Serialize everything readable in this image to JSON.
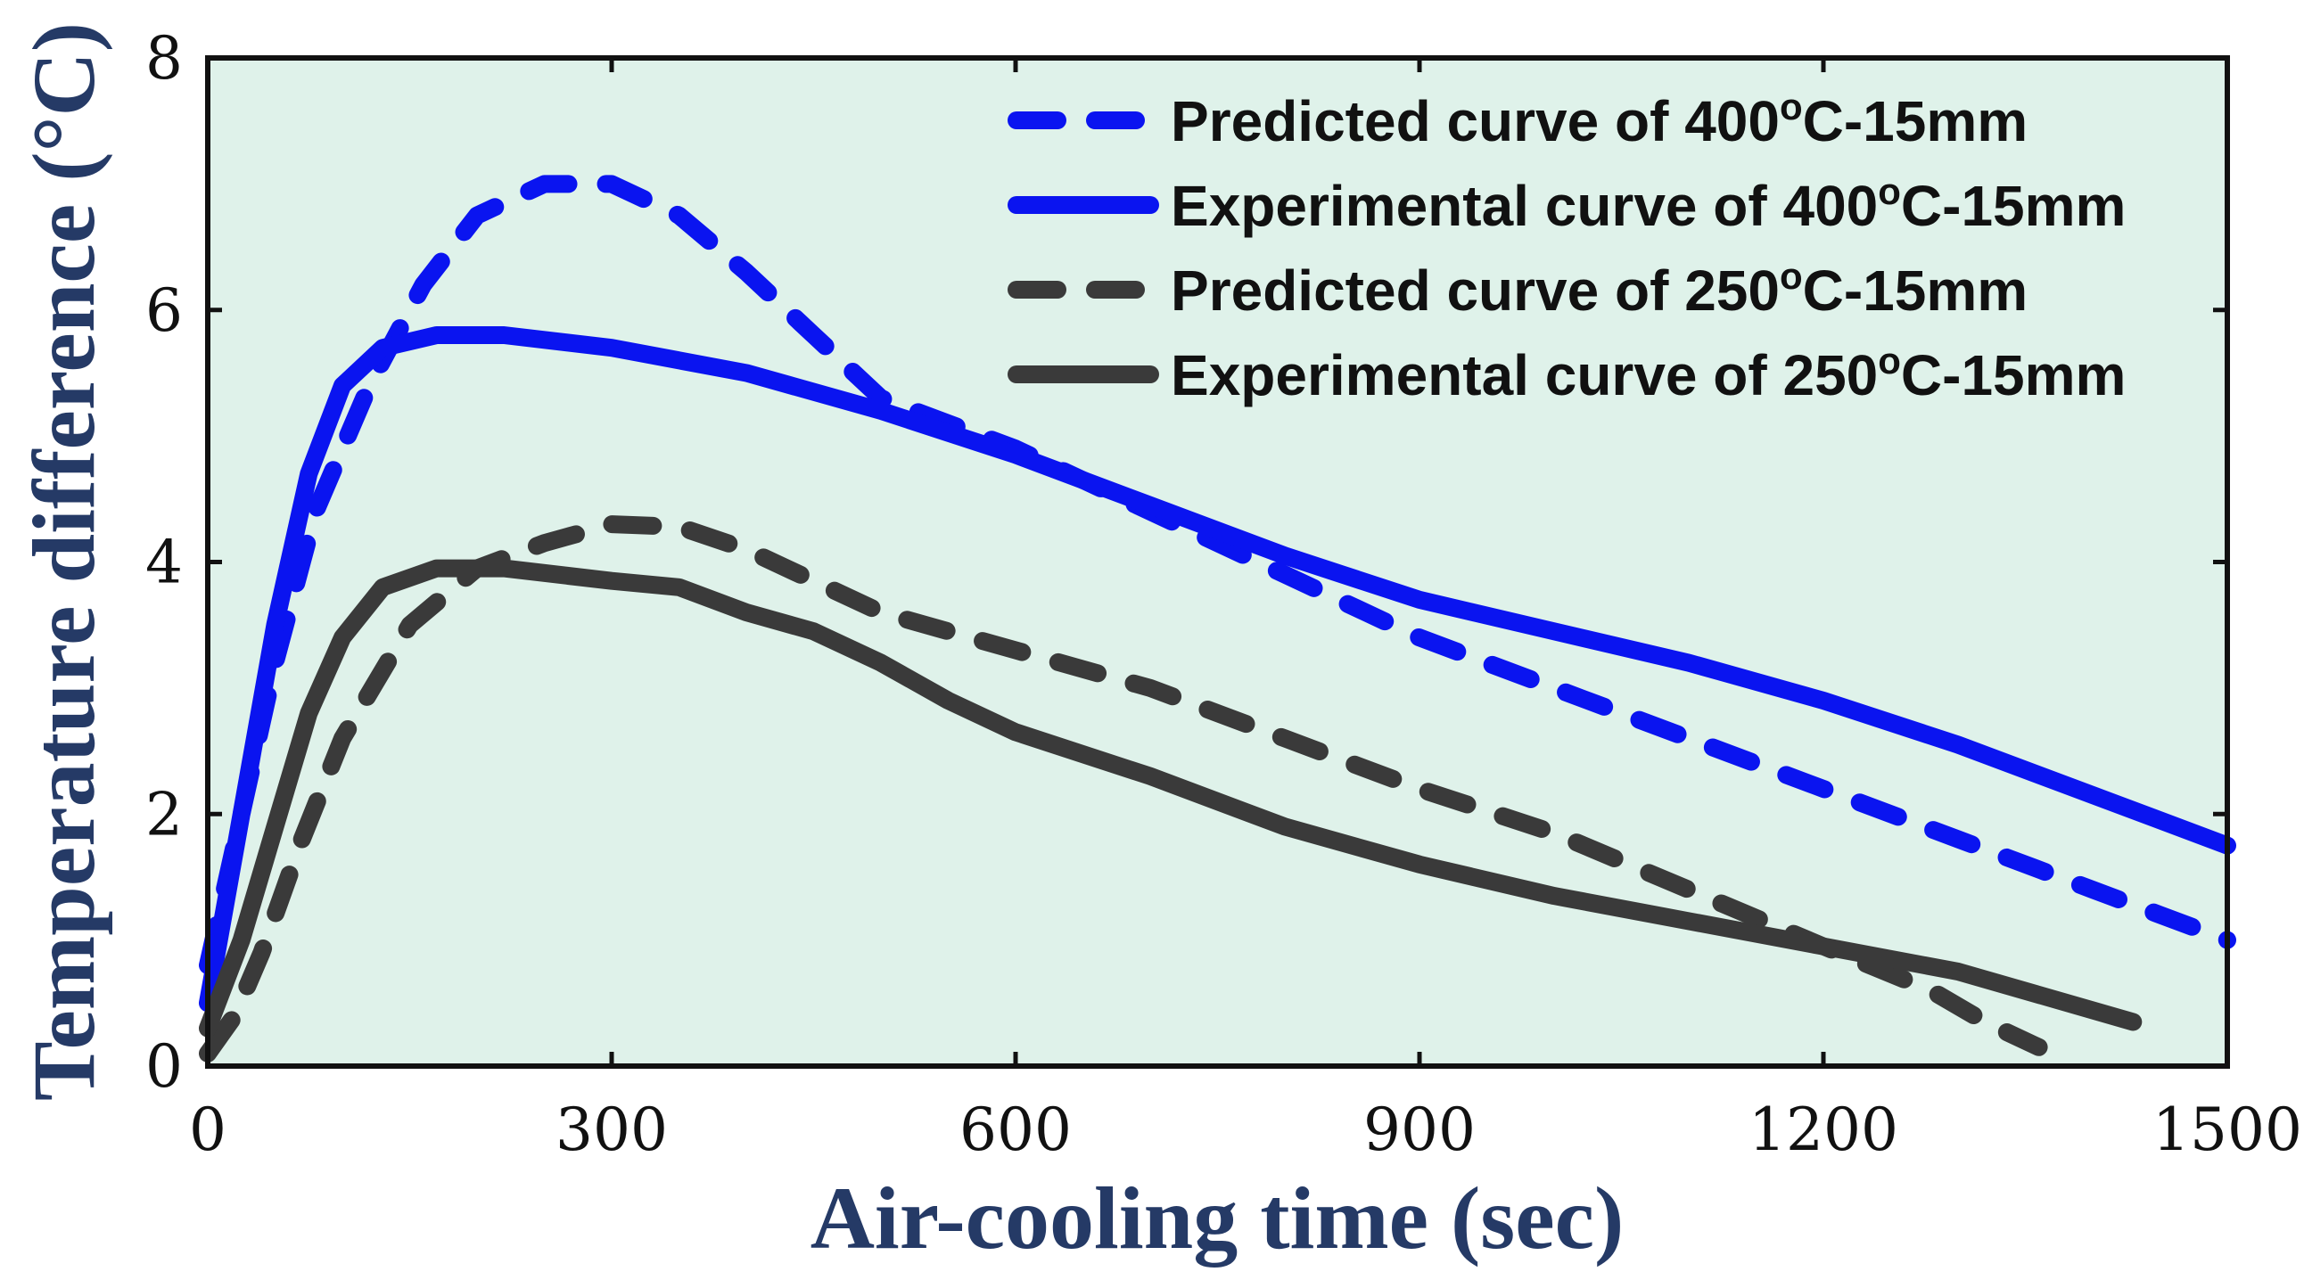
{
  "chart_data": {
    "type": "line",
    "title": "",
    "xlabel": "Air-cooling time (sec)",
    "ylabel": "Temperature difference (°C)",
    "xlim": [
      0,
      1500
    ],
    "ylim": [
      0,
      8
    ],
    "xticks": [
      0,
      300,
      600,
      900,
      1200,
      1500
    ],
    "yticks": [
      0,
      2,
      4,
      6,
      8
    ],
    "grid": false,
    "legend_position": "top-right",
    "colors": {
      "background": "#dff2ea",
      "blue": "#0a14f0",
      "gray": "#3a3a3a",
      "axis": "#111111",
      "axis_title": "#253a66"
    },
    "series": [
      {
        "name": "Predicted curve of 400oC-15mm",
        "label_parts": [
          "Predicted curve of 400",
          "o",
          "C-15mm"
        ],
        "color": "#0a14f0",
        "style": "dashed",
        "x": [
          0,
          25,
          50,
          80,
          120,
          160,
          200,
          250,
          300,
          350,
          400,
          450,
          500,
          600,
          700,
          800,
          900,
          1000,
          1100,
          1200,
          1300,
          1400,
          1500
        ],
        "y": [
          0.8,
          2.0,
          3.2,
          4.4,
          5.4,
          6.2,
          6.75,
          7.0,
          7.0,
          6.75,
          6.3,
          5.8,
          5.3,
          4.9,
          4.4,
          3.9,
          3.4,
          3.0,
          2.6,
          2.2,
          1.8,
          1.4,
          1.0
        ]
      },
      {
        "name": "Experimental curve of 400oC-15mm",
        "label_parts": [
          "Experimental curve of 400",
          "o",
          "C-15mm"
        ],
        "color": "#0a14f0",
        "style": "solid",
        "x": [
          0,
          25,
          50,
          75,
          100,
          130,
          170,
          220,
          300,
          400,
          500,
          600,
          700,
          800,
          900,
          1000,
          1100,
          1200,
          1300,
          1400,
          1500
        ],
        "y": [
          0.5,
          2.0,
          3.5,
          4.7,
          5.4,
          5.7,
          5.8,
          5.8,
          5.7,
          5.5,
          5.2,
          4.85,
          4.45,
          4.05,
          3.7,
          3.45,
          3.2,
          2.9,
          2.55,
          2.15,
          1.75
        ]
      },
      {
        "name": "Predicted curve of 250oC-15mm",
        "label_parts": [
          "Predicted curve of 250",
          "o",
          "C-15mm"
        ],
        "color": "#3a3a3a",
        "style": "dashed",
        "x": [
          0,
          20,
          40,
          70,
          100,
          150,
          200,
          250,
          300,
          350,
          400,
          500,
          600,
          700,
          800,
          900,
          1000,
          1100,
          1200,
          1280,
          1320,
          1360
        ],
        "y": [
          0.1,
          0.4,
          0.9,
          1.8,
          2.6,
          3.5,
          3.95,
          4.15,
          4.3,
          4.28,
          4.1,
          3.6,
          3.3,
          3.0,
          2.6,
          2.2,
          1.85,
          1.4,
          0.95,
          0.6,
          0.35,
          0.15
        ]
      },
      {
        "name": "Experimental curve of 250oC-15mm",
        "label_parts": [
          "Experimental curve of 250",
          "o",
          "C-15mm"
        ],
        "color": "#3a3a3a",
        "style": "solid",
        "x": [
          0,
          25,
          50,
          75,
          100,
          130,
          170,
          220,
          300,
          350,
          400,
          450,
          500,
          550,
          600,
          700,
          800,
          900,
          1000,
          1100,
          1200,
          1300,
          1430
        ],
        "y": [
          0.3,
          1.0,
          1.9,
          2.8,
          3.4,
          3.8,
          3.95,
          3.95,
          3.85,
          3.8,
          3.6,
          3.45,
          3.2,
          2.9,
          2.65,
          2.3,
          1.9,
          1.6,
          1.35,
          1.15,
          0.95,
          0.75,
          0.35
        ]
      }
    ]
  }
}
